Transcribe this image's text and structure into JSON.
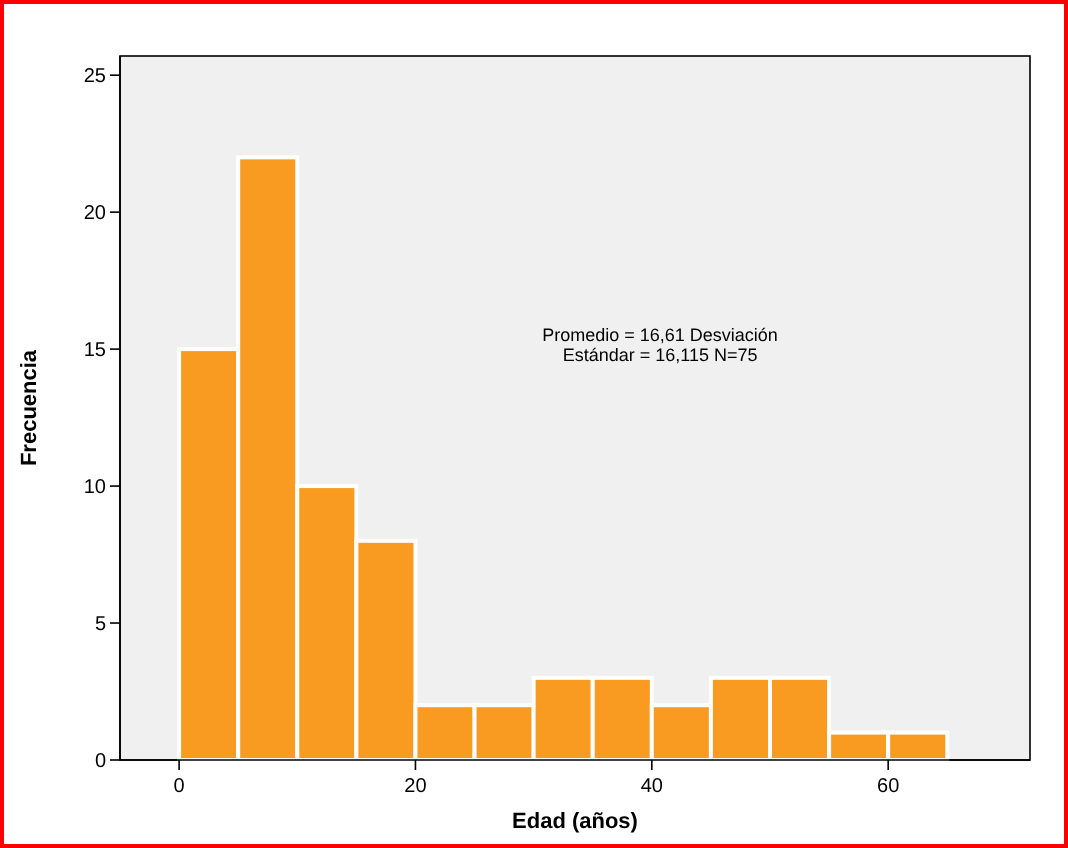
{
  "chart_data": {
    "type": "histogram",
    "xlabel": "Edad (años)",
    "ylabel": "Frecuencia",
    "bins": [
      0,
      5,
      10,
      15,
      20,
      25,
      30,
      35,
      40,
      45,
      50,
      55,
      60,
      65
    ],
    "values": [
      15,
      22,
      10,
      8,
      2,
      2,
      3,
      3,
      2,
      3,
      3,
      1,
      1
    ],
    "color": "#f99b20",
    "xlim": [
      -5,
      72
    ],
    "xticks": [
      0,
      20,
      40,
      60
    ],
    "ylim": [
      0,
      25.7
    ],
    "yticks": [
      0,
      5,
      10,
      15,
      20,
      25
    ],
    "grid": false,
    "annotations": [
      "Promedio = 16,61 Desviación Estándar = 16,115 N=75"
    ]
  }
}
